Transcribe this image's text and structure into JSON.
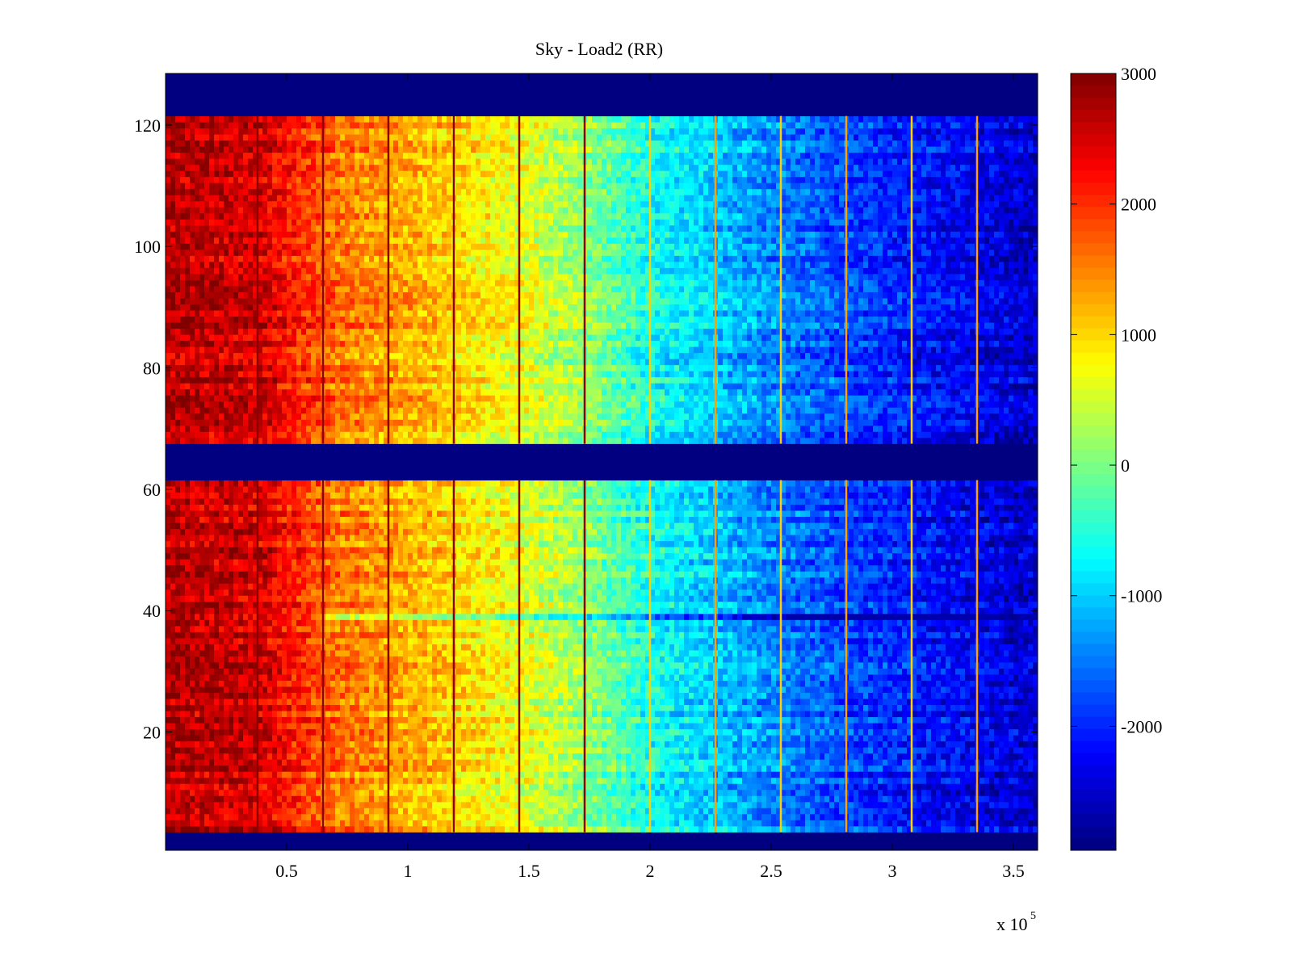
{
  "chart_data": {
    "type": "heatmap",
    "title": "Sky - Load2 (RR)",
    "xlabel": "",
    "ylabel": "",
    "x_multiplier": {
      "base": "x 10",
      "exponent": "5"
    },
    "xlim": [
      0,
      360000
    ],
    "ylim": [
      0.5,
      128.5
    ],
    "x_ticks": [
      {
        "value": 50000,
        "label": "0.5"
      },
      {
        "value": 100000,
        "label": "1"
      },
      {
        "value": 150000,
        "label": "1.5"
      },
      {
        "value": 200000,
        "label": "2"
      },
      {
        "value": 250000,
        "label": "2.5"
      },
      {
        "value": 300000,
        "label": "3"
      },
      {
        "value": 350000,
        "label": "3.5"
      }
    ],
    "y_ticks": [
      {
        "value": 20,
        "label": "20"
      },
      {
        "value": 40,
        "label": "40"
      },
      {
        "value": 60,
        "label": "60"
      },
      {
        "value": 80,
        "label": "80"
      },
      {
        "value": 100,
        "label": "100"
      },
      {
        "value": 120,
        "label": "120"
      }
    ],
    "colorbar": {
      "colormap": "jet",
      "range": [
        -2950,
        3000
      ],
      "ticks": [
        {
          "value": 3000,
          "label": "3000"
        },
        {
          "value": 2000,
          "label": "2000"
        },
        {
          "value": 1000,
          "label": "1000"
        },
        {
          "value": 0,
          "label": "0"
        },
        {
          "value": -1000,
          "label": "-1000"
        },
        {
          "value": -2000,
          "label": "-2000"
        }
      ]
    },
    "masked_value": -2950,
    "masked_row_ranges": [
      [
        1,
        3
      ],
      [
        62,
        67
      ],
      [
        122,
        128
      ]
    ],
    "value_gradient_along_x": [
      {
        "x": 0,
        "value": 2700
      },
      {
        "x": 40000,
        "value": 2500
      },
      {
        "x": 70000,
        "value": 1600
      },
      {
        "x": 120000,
        "value": 1000
      },
      {
        "x": 150000,
        "value": 600
      },
      {
        "x": 175000,
        "value": 100
      },
      {
        "x": 200000,
        "value": -600
      },
      {
        "x": 250000,
        "value": -1400
      },
      {
        "x": 300000,
        "value": -2000
      },
      {
        "x": 360000,
        "value": -2500
      }
    ],
    "vertical_stripe_positions_x": [
      38000,
      65000,
      92000,
      119000,
      146000,
      173000,
      200000,
      227000,
      254000,
      281000,
      308000,
      335000
    ],
    "annotations": [
      {
        "note": "row ~39 anomalous band",
        "y": 39,
        "x_range": [
          65000,
          360000
        ]
      }
    ],
    "colors": {
      "background": "#ffffff",
      "masked": "#00008f",
      "axis": "#000000"
    }
  }
}
